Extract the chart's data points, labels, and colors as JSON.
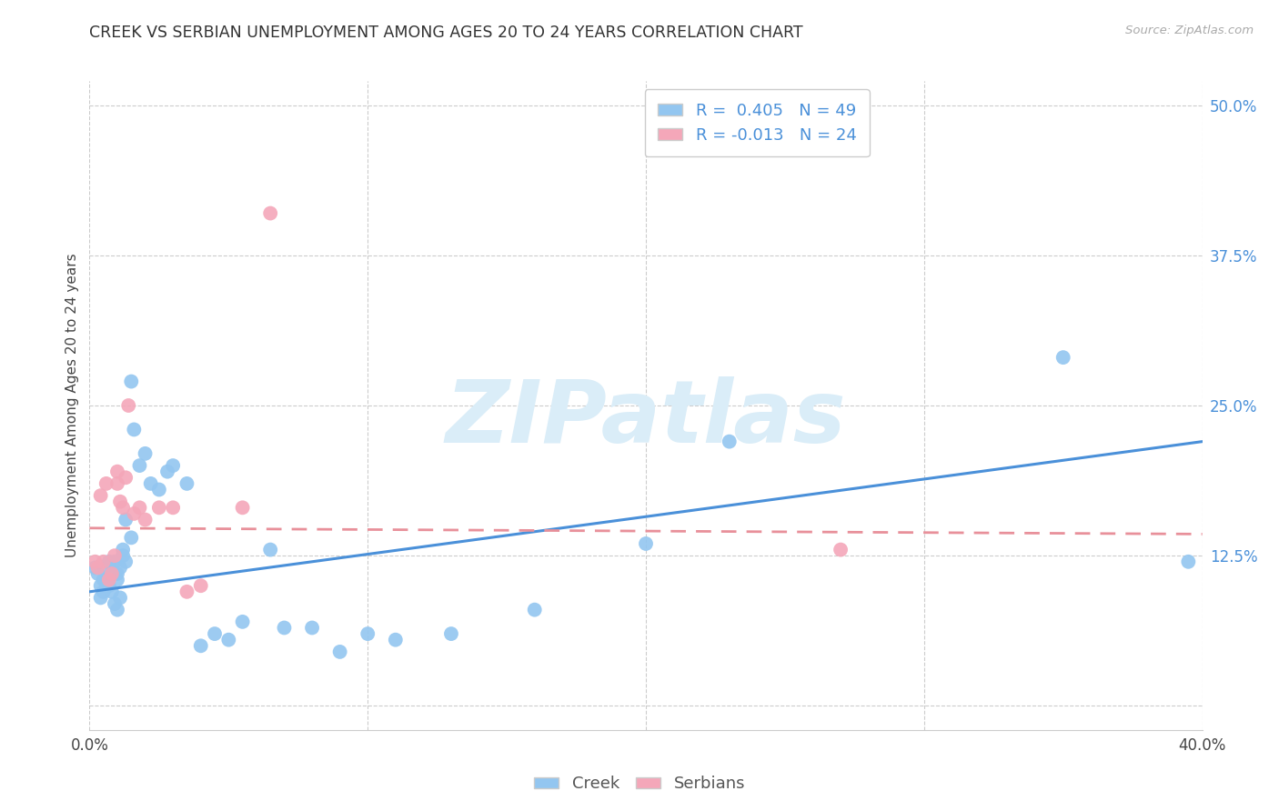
{
  "title": "CREEK VS SERBIAN UNEMPLOYMENT AMONG AGES 20 TO 24 YEARS CORRELATION CHART",
  "source": "Source: ZipAtlas.com",
  "ylabel": "Unemployment Among Ages 20 to 24 years",
  "xlim": [
    0.0,
    0.4
  ],
  "ylim": [
    -0.02,
    0.52
  ],
  "xticks": [
    0.0,
    0.1,
    0.2,
    0.3,
    0.4
  ],
  "xtick_labels": [
    "0.0%",
    "",
    "",
    "",
    "40.0%"
  ],
  "yticks_right": [
    0.5,
    0.375,
    0.25,
    0.125,
    0.0
  ],
  "ytick_labels_right": [
    "50.0%",
    "37.5%",
    "25.0%",
    "12.5%",
    ""
  ],
  "creek_R": 0.405,
  "creek_N": 49,
  "serbian_R": -0.013,
  "serbian_N": 24,
  "creek_color": "#93c6f0",
  "serbian_color": "#f4a7b9",
  "creek_line_color": "#4a90d9",
  "serbian_line_color": "#e8909a",
  "watermark_color": "#daedf8",
  "legend_label_color": "#4a90d9",
  "creek_scatter_x": [
    0.002,
    0.003,
    0.004,
    0.004,
    0.005,
    0.005,
    0.006,
    0.006,
    0.007,
    0.007,
    0.008,
    0.008,
    0.009,
    0.009,
    0.01,
    0.01,
    0.01,
    0.011,
    0.011,
    0.012,
    0.012,
    0.013,
    0.013,
    0.015,
    0.015,
    0.016,
    0.018,
    0.02,
    0.022,
    0.025,
    0.028,
    0.03,
    0.035,
    0.04,
    0.045,
    0.05,
    0.055,
    0.065,
    0.07,
    0.08,
    0.09,
    0.1,
    0.11,
    0.13,
    0.16,
    0.2,
    0.23,
    0.35,
    0.395
  ],
  "creek_scatter_y": [
    0.115,
    0.11,
    0.1,
    0.09,
    0.105,
    0.095,
    0.115,
    0.105,
    0.12,
    0.1,
    0.11,
    0.095,
    0.12,
    0.085,
    0.11,
    0.105,
    0.08,
    0.115,
    0.09,
    0.13,
    0.125,
    0.155,
    0.12,
    0.27,
    0.14,
    0.23,
    0.2,
    0.21,
    0.185,
    0.18,
    0.195,
    0.2,
    0.185,
    0.05,
    0.06,
    0.055,
    0.07,
    0.13,
    0.065,
    0.065,
    0.045,
    0.06,
    0.055,
    0.06,
    0.08,
    0.135,
    0.22,
    0.29,
    0.12
  ],
  "serbian_scatter_x": [
    0.002,
    0.003,
    0.004,
    0.005,
    0.006,
    0.007,
    0.008,
    0.009,
    0.01,
    0.01,
    0.011,
    0.012,
    0.013,
    0.014,
    0.016,
    0.018,
    0.02,
    0.025,
    0.03,
    0.035,
    0.04,
    0.055,
    0.065,
    0.27
  ],
  "serbian_scatter_y": [
    0.12,
    0.115,
    0.175,
    0.12,
    0.185,
    0.105,
    0.11,
    0.125,
    0.195,
    0.185,
    0.17,
    0.165,
    0.19,
    0.25,
    0.16,
    0.165,
    0.155,
    0.165,
    0.165,
    0.095,
    0.1,
    0.165,
    0.41,
    0.13
  ],
  "creek_trend_x": [
    0.0,
    0.4
  ],
  "creek_trend_y": [
    0.095,
    0.22
  ],
  "serbian_trend_x": [
    0.0,
    0.4
  ],
  "serbian_trend_y": [
    0.148,
    0.143
  ]
}
